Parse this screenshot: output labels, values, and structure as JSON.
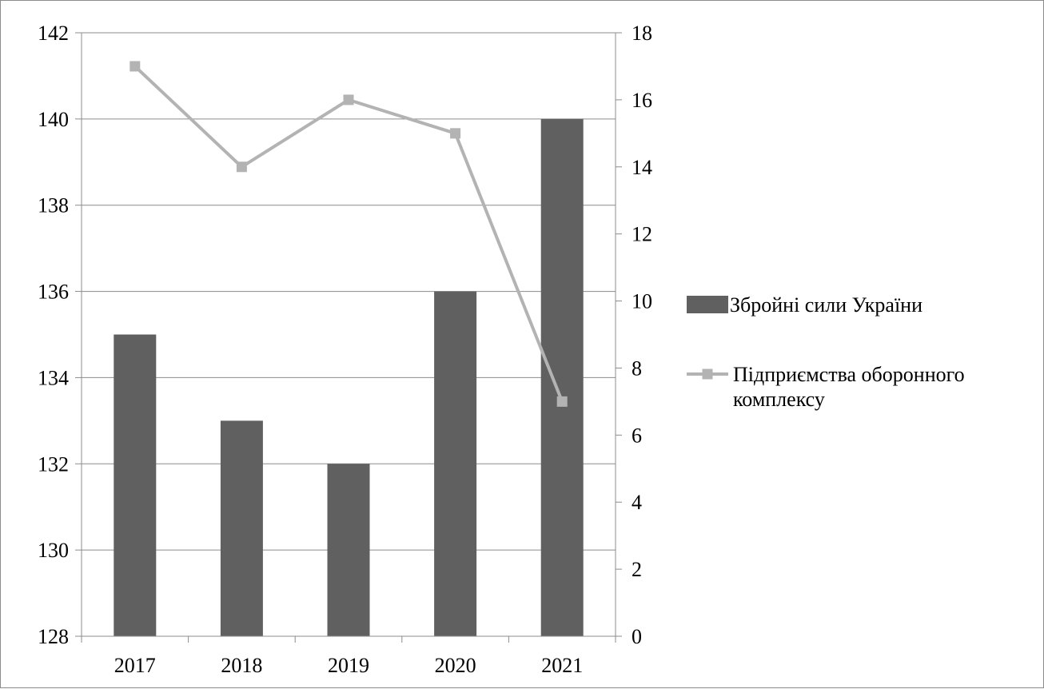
{
  "chart_data": {
    "type": "bar",
    "title": "",
    "xlabel": "",
    "ylabel": "",
    "categories": [
      "2017",
      "2018",
      "2019",
      "2020",
      "2021"
    ],
    "series": [
      {
        "name": "Збройні сили України",
        "type": "bar",
        "axis": "left",
        "color": "#606060",
        "values": [
          135,
          133,
          132,
          136,
          140
        ]
      },
      {
        "name": "Підприємства оборонного комплексу",
        "type": "line",
        "axis": "right",
        "color": "#b3b3b3",
        "marker": "square",
        "values": [
          17,
          14,
          16,
          15,
          7
        ]
      }
    ],
    "ylim": [
      128,
      142
    ],
    "y_ticks": [
      "128",
      "130",
      "132",
      "134",
      "136",
      "138",
      "140",
      "142"
    ],
    "y2lim": [
      0,
      18
    ],
    "y2_ticks": [
      "0",
      "2",
      "4",
      "6",
      "8",
      "10",
      "12",
      "14",
      "16",
      "18"
    ],
    "grid": true,
    "legend": {
      "placement": "right",
      "entries": [
        {
          "label": "Збройні сили України",
          "symbol": "bar"
        },
        {
          "label_lines": [
            "Підприємства оборонного",
            "комплексу"
          ],
          "symbol": "line-square"
        }
      ]
    }
  }
}
